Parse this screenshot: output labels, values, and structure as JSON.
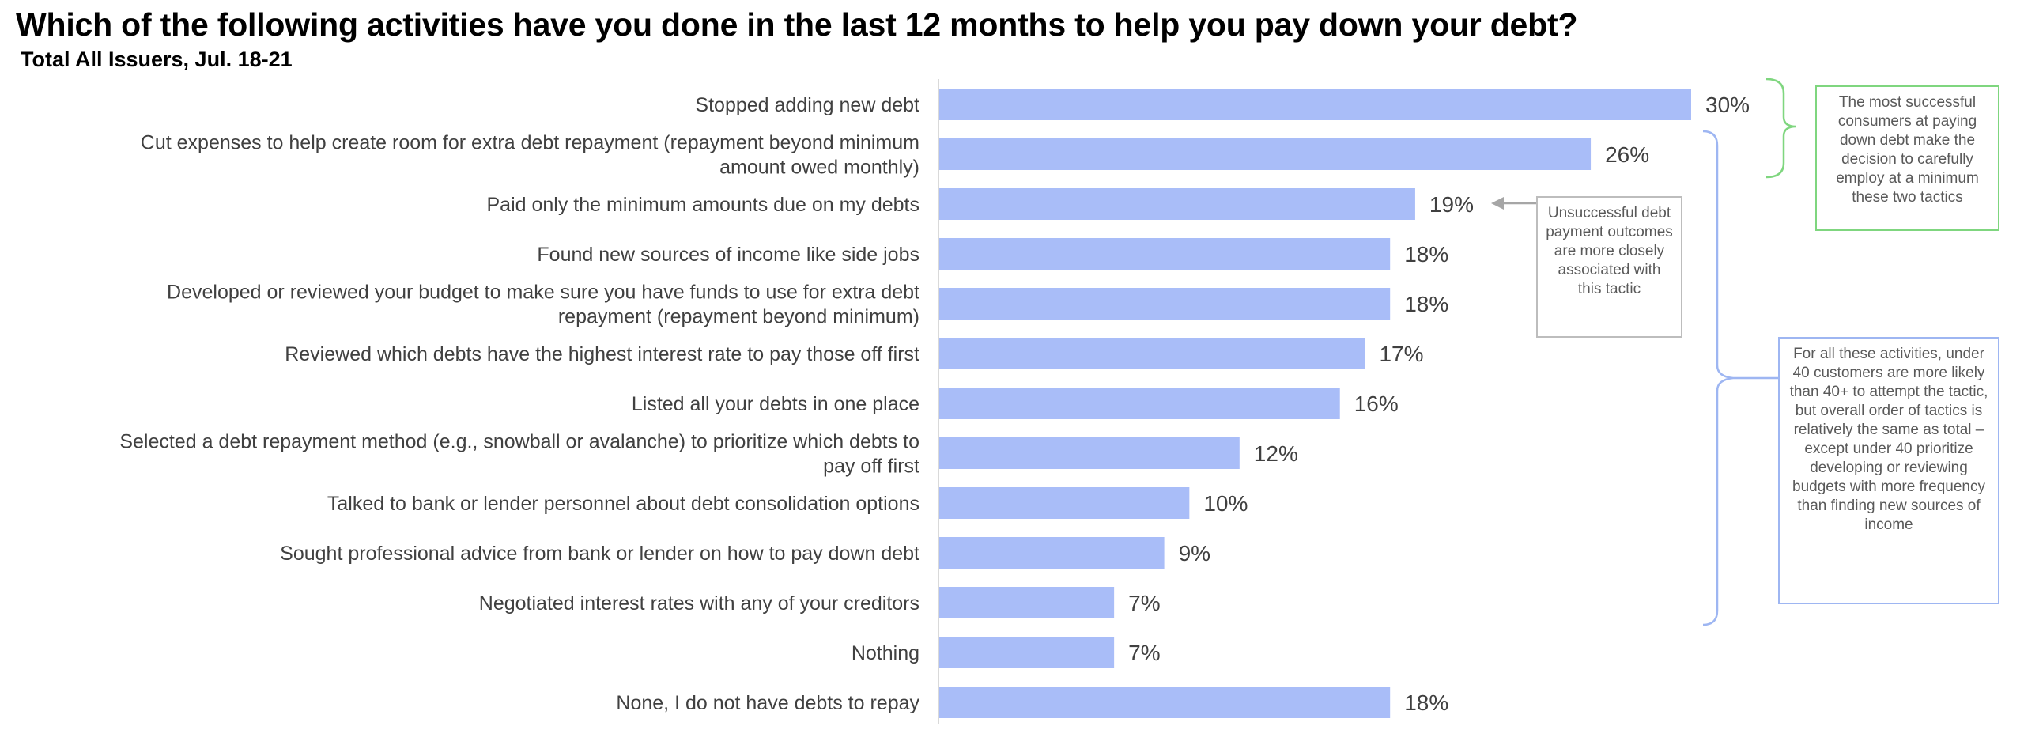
{
  "title": "Which of the following activities have you done in the last 12 months to help you pay down your debt?",
  "subtitle": "Total All Issuers, Jul. 18-21",
  "colors": {
    "bar": "#a9bdf8",
    "axis": "#d9d9d9",
    "green_bracket": "#7fd67f",
    "blue_bracket": "#9eb6f2",
    "gray_arrow": "#a6a6a6"
  },
  "chart_data": {
    "type": "bar",
    "orientation": "horizontal",
    "categories": [
      [
        "Stopped adding new debt"
      ],
      [
        "Cut expenses to help create room for extra debt repayment (repayment beyond minimum",
        "amount owed monthly)"
      ],
      [
        "Paid only the minimum amounts due on my debts"
      ],
      [
        "Found new sources of income like side jobs"
      ],
      [
        "Developed or reviewed your budget to make sure you have funds to use for extra debt",
        "repayment (repayment beyond minimum)"
      ],
      [
        "Reviewed which debts have the highest interest rate to pay those off first"
      ],
      [
        "Listed all your debts in one place"
      ],
      [
        "Selected a debt repayment method (e.g., snowball or avalanche) to prioritize which debts to",
        "pay off first"
      ],
      [
        "Talked to bank or lender personnel about debt consolidation options"
      ],
      [
        "Sought professional advice from bank or lender on how to pay down debt"
      ],
      [
        "Negotiated interest rates with any of your creditors"
      ],
      [
        "Nothing"
      ],
      [
        "None, I do not have debts to repay"
      ]
    ],
    "values": [
      30,
      26,
      19,
      18,
      18,
      17,
      16,
      12,
      10,
      9,
      7,
      7,
      18
    ],
    "value_labels": [
      "30%",
      "26%",
      "19%",
      "18%",
      "18%",
      "17%",
      "16%",
      "12%",
      "10%",
      "9%",
      "7%",
      "7%",
      "18%"
    ],
    "xlim": [
      0,
      30
    ],
    "grid": false,
    "legend": "none"
  },
  "annotations": {
    "green_note": "The most successful consumers at paying down debt make the decision to carefully employ at a minimum these two tactics",
    "gray_note": "Unsuccessful debt payment outcomes are more closely associated with this tactic",
    "blue_note": "For all these activities, under 40 customers are more likely than 40+ to attempt the tactic, but overall order of tactics is relatively the same as total – except under 40 prioritize developing or reviewing budgets with more frequency than finding new sources of income"
  }
}
